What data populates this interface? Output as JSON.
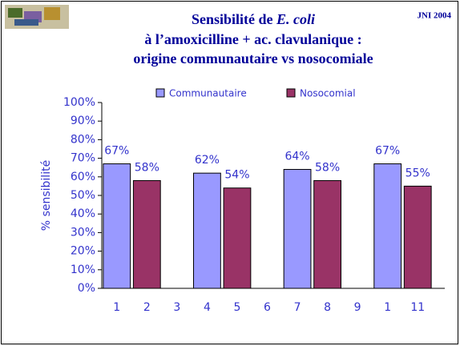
{
  "chart_data": {
    "type": "bar",
    "title_parts": [
      "Sensibilité de ",
      "E. coli"
    ],
    "title_lines": [
      "à l’amoxicilline + ac. clavulanique :",
      "origine communautaire vs nosocomiale"
    ],
    "annotation": "JNI 2004",
    "y_label": "% sensibilité",
    "categories": [
      "1",
      "2",
      "3",
      "4",
      "5",
      "6",
      "7",
      "8",
      "9",
      "1",
      "11"
    ],
    "series": [
      {
        "name": "Communautaire",
        "color": "#9999ff",
        "values": [
          67,
          null,
          null,
          62,
          null,
          null,
          64,
          null,
          null,
          67,
          null
        ],
        "value_labels": [
          "67%",
          null,
          null,
          "62%",
          null,
          null,
          "64%",
          null,
          null,
          "67%",
          null
        ]
      },
      {
        "name": "Nosocomial",
        "color": "#993366",
        "values": [
          null,
          58,
          null,
          null,
          54,
          null,
          null,
          58,
          null,
          null,
          55
        ],
        "value_labels": [
          null,
          "58%",
          null,
          null,
          "54%",
          null,
          null,
          "58%",
          null,
          null,
          "55%"
        ]
      }
    ],
    "ylim": [
      0,
      100
    ],
    "yticks": [
      {
        "value": 0,
        "label": "0%"
      },
      {
        "value": 10,
        "label": "10%"
      },
      {
        "value": 20,
        "label": "20%"
      },
      {
        "value": 30,
        "label": "30%"
      },
      {
        "value": 40,
        "label": "40%"
      },
      {
        "value": 50,
        "label": "50%"
      },
      {
        "value": 60,
        "label": "60%"
      },
      {
        "value": 70,
        "label": "70%"
      },
      {
        "value": 80,
        "label": "80%"
      },
      {
        "value": 90,
        "label": "90%"
      },
      {
        "value": 100,
        "label": "100%"
      }
    ],
    "legend": "top"
  }
}
